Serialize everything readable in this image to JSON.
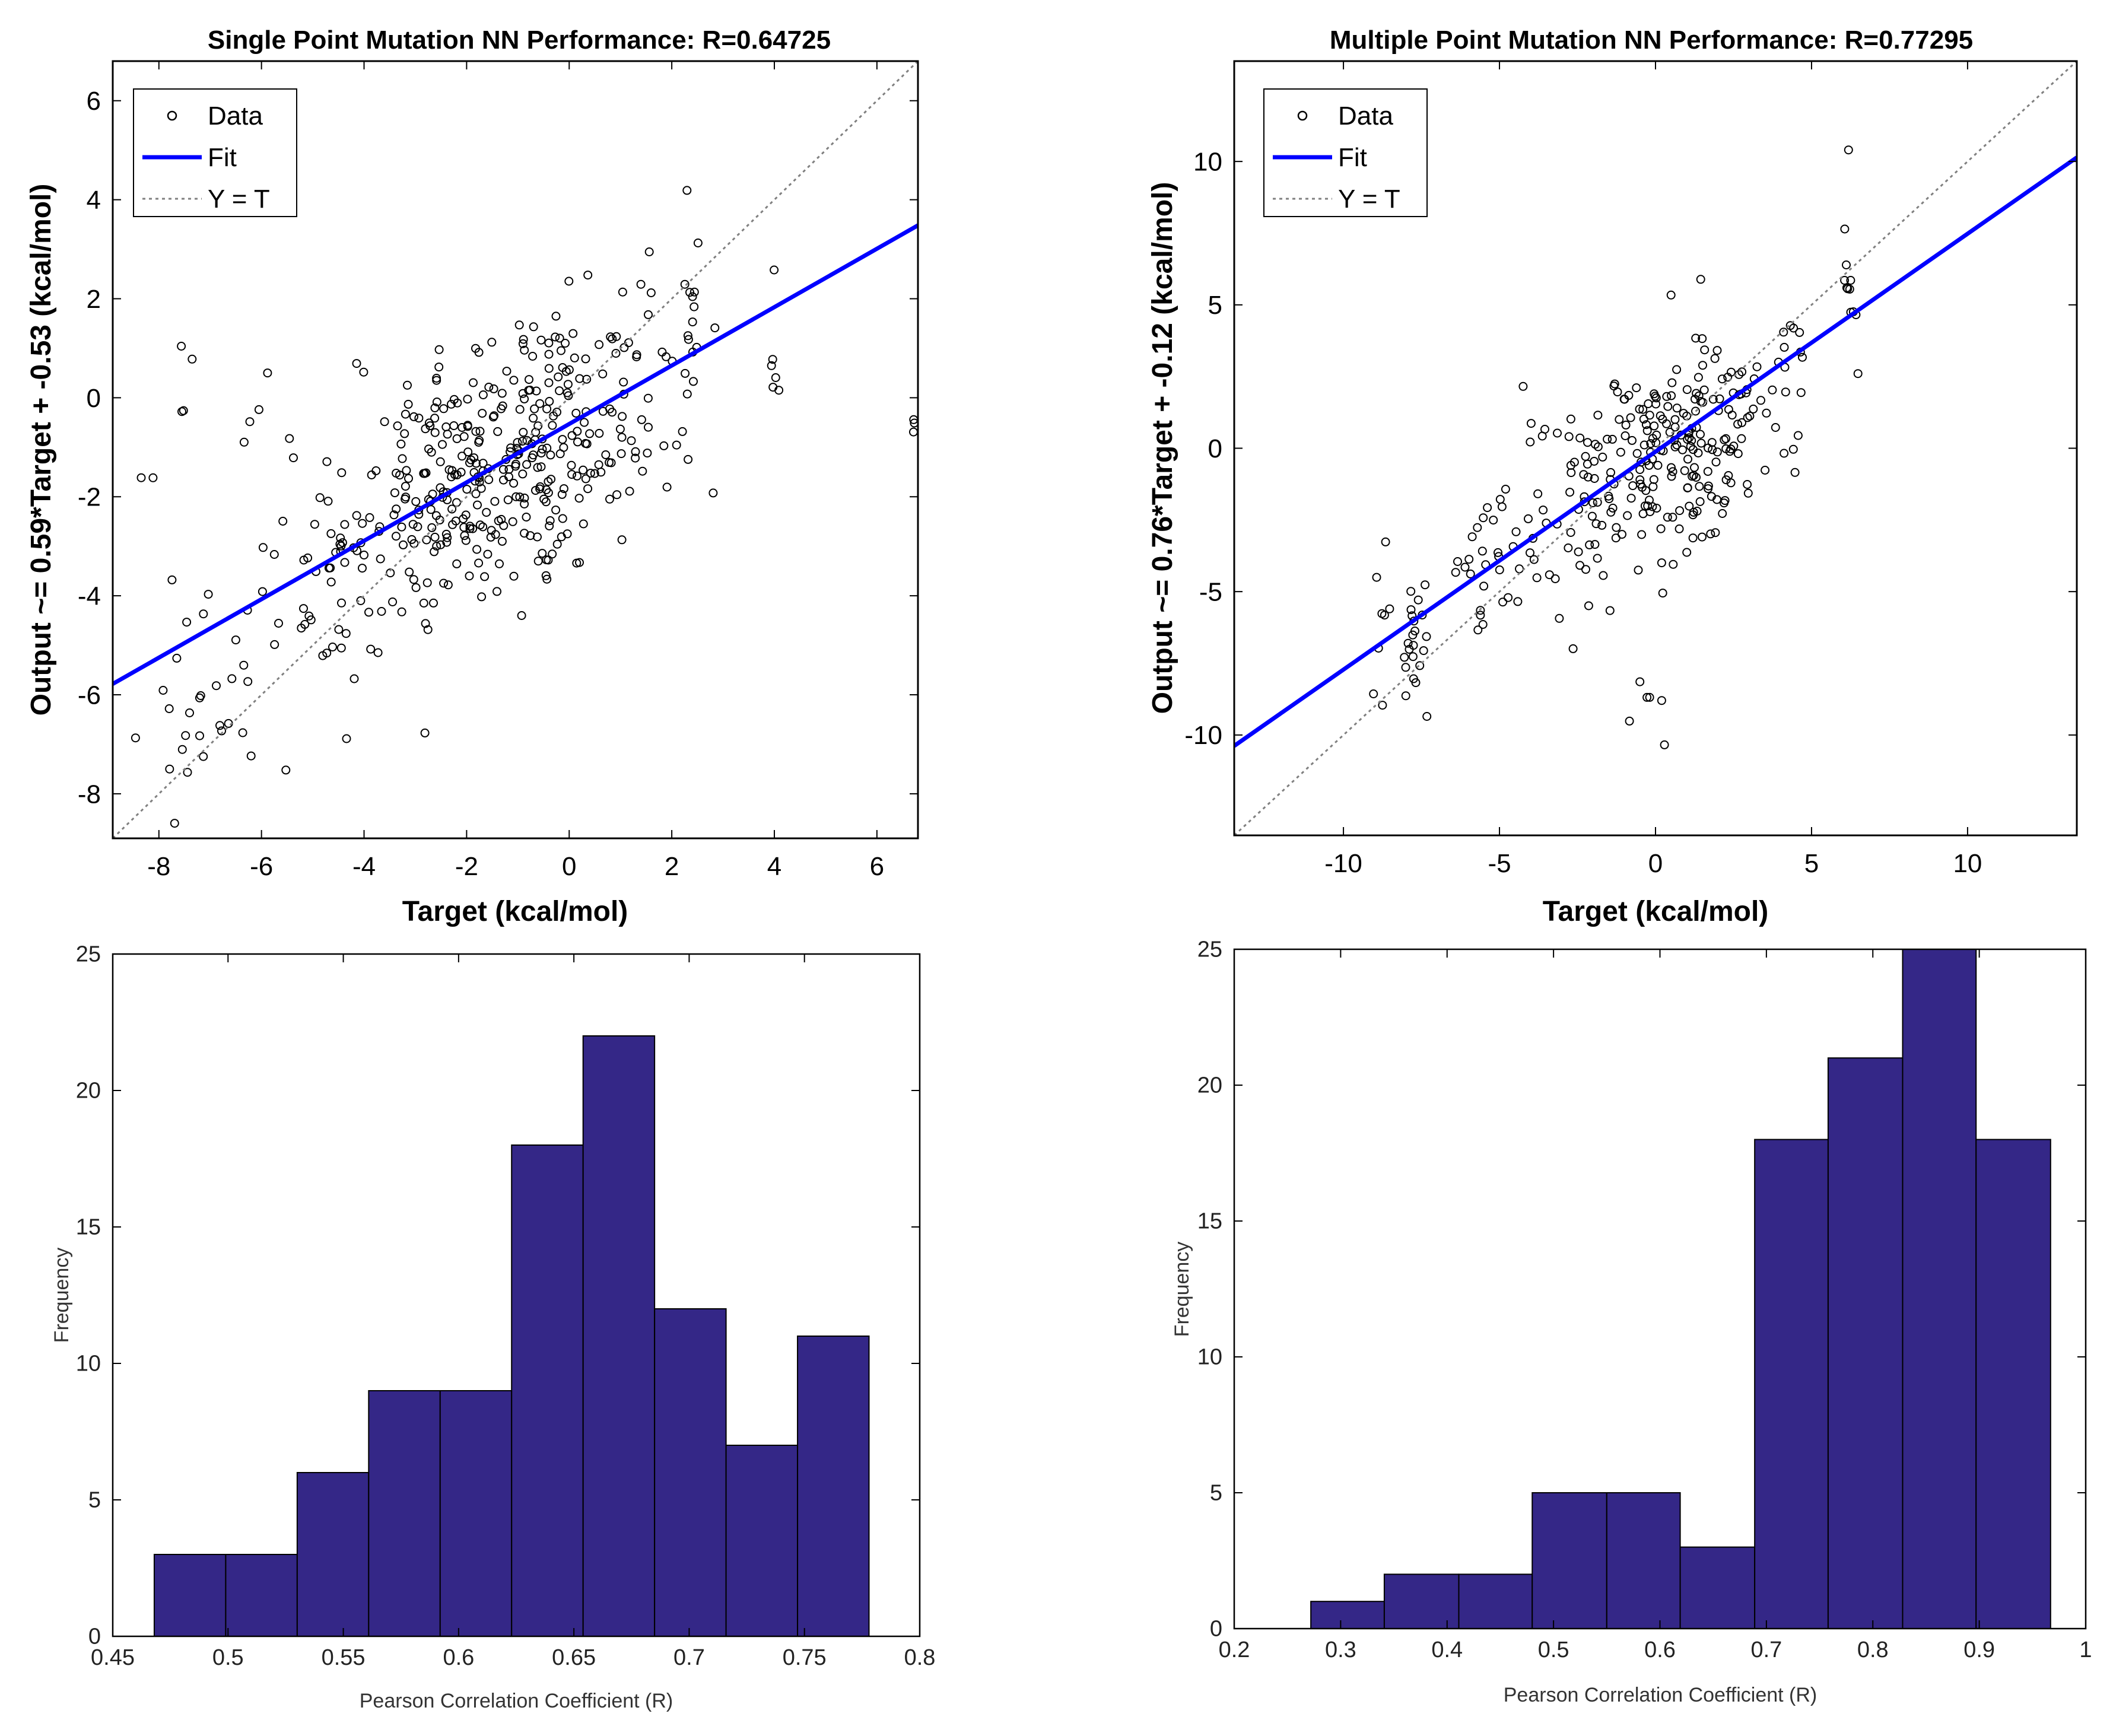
{
  "chart_data": [
    {
      "id": "p1",
      "type": "scatter",
      "title": "Single Point Mutation NN Performance: R=0.64725",
      "xlabel": "Target (kcal/mol)",
      "ylabel": "Output ~= 0.59*Target + -0.53 (kcal/mol)",
      "xlim": [
        -8.9,
        6.8
      ],
      "ylim": [
        -8.9,
        6.8
      ],
      "xticks": [
        -8,
        -6,
        -4,
        -2,
        0,
        2,
        4,
        6
      ],
      "yticks": [
        -8,
        -6,
        -4,
        -2,
        0,
        2,
        4,
        6
      ],
      "fit": {
        "slope": 0.59,
        "intercept": -0.53
      },
      "identity_line": true,
      "legend": {
        "placement": "top-left",
        "entries": [
          "Data",
          "Fit",
          "Y = T"
        ]
      },
      "point_clusters": [
        {
          "x": -0.8,
          "y": -0.9,
          "sx": 1.3,
          "sy": 1.4,
          "n": 240
        },
        {
          "x": -3.2,
          "y": -2.6,
          "sx": 0.7,
          "sy": 1.1,
          "n": 70
        },
        {
          "x": -1.8,
          "y": -2.0,
          "sx": 0.9,
          "sy": 1.3,
          "n": 60
        },
        {
          "x": -4.8,
          "y": -4.3,
          "sx": 0.5,
          "sy": 0.9,
          "n": 30
        },
        {
          "x": -7.2,
          "y": -6.5,
          "sx": 0.6,
          "sy": 0.9,
          "n": 22
        },
        {
          "x": -6.0,
          "y": -3.5,
          "sx": 0.5,
          "sy": 2.2,
          "n": 16
        },
        {
          "x": -8.0,
          "y": -1.8,
          "sx": 0.3,
          "sy": 1.3,
          "n": 8
        },
        {
          "x": 1.8,
          "y": 0.2,
          "sx": 0.6,
          "sy": 1.3,
          "n": 22
        },
        {
          "x": 2.4,
          "y": 1.6,
          "sx": 0.15,
          "sy": 1.4,
          "n": 14
        },
        {
          "x": 4.0,
          "y": 0.4,
          "sx": 0.05,
          "sy": 1.1,
          "n": 6
        },
        {
          "x": 6.7,
          "y": -1.2,
          "sx": 0.05,
          "sy": 0.5,
          "n": 3
        }
      ]
    },
    {
      "id": "p2",
      "type": "scatter",
      "title": "Multiple Point Mutation NN Performance: R=0.77295",
      "xlabel": "Target (kcal/mol)",
      "ylabel": "Output ~= 0.76*Target + -0.12 (kcal/mol)",
      "xlim": [
        -13.5,
        13.5
      ],
      "ylim": [
        -13.5,
        13.5
      ],
      "xticks": [
        -10,
        -5,
        0,
        5,
        10
      ],
      "yticks": [
        -10,
        -5,
        0,
        5,
        10
      ],
      "fit": {
        "slope": 0.76,
        "intercept": -0.12
      },
      "identity_line": true,
      "legend": {
        "placement": "top-left",
        "entries": [
          "Data",
          "Fit",
          "Y = T"
        ]
      },
      "point_clusters": [
        {
          "x": 0.3,
          "y": -0.3,
          "sx": 1.2,
          "sy": 1.6,
          "n": 150
        },
        {
          "x": -2.5,
          "y": -2.2,
          "sx": 1.3,
          "sy": 1.8,
          "n": 60
        },
        {
          "x": 2.2,
          "y": 1.2,
          "sx": 1.0,
          "sy": 1.5,
          "n": 50
        },
        {
          "x": -5.2,
          "y": -4.5,
          "sx": 0.7,
          "sy": 1.6,
          "n": 30
        },
        {
          "x": -7.8,
          "y": -6.8,
          "sx": 0.3,
          "sy": 1.2,
          "n": 22
        },
        {
          "x": -8.8,
          "y": -6.5,
          "sx": 0.2,
          "sy": 1.4,
          "n": 8
        },
        {
          "x": 4.2,
          "y": 3.5,
          "sx": 0.4,
          "sy": 1.8,
          "n": 12
        },
        {
          "x": 6.2,
          "y": 4.8,
          "sx": 0.1,
          "sy": 1.8,
          "n": 12
        },
        {
          "x": -0.5,
          "y": -8.8,
          "sx": 0.7,
          "sy": 0.7,
          "n": 6
        }
      ]
    },
    {
      "id": "h1",
      "type": "bar",
      "subtype": "histogram",
      "title": "",
      "xlabel": "Pearson Correlation Coefficient (R)",
      "ylabel": "Frequency",
      "xlim": [
        0.45,
        0.8
      ],
      "ylim": [
        0,
        25
      ],
      "xticks": [
        0.45,
        0.5,
        0.55,
        0.6,
        0.65,
        0.7,
        0.75,
        0.8
      ],
      "yticks": [
        0,
        5,
        10,
        15,
        20,
        25
      ],
      "bin_edges": [
        0.468,
        0.499,
        0.53,
        0.561,
        0.592,
        0.623,
        0.654,
        0.685,
        0.716,
        0.747,
        0.778
      ],
      "values": [
        3,
        3,
        6,
        9,
        9,
        18,
        22,
        12,
        7,
        11
      ],
      "bar_color": "#342787"
    },
    {
      "id": "h2",
      "type": "bar",
      "subtype": "histogram",
      "title": "",
      "xlabel": "Pearson Correlation Coefficient (R)",
      "ylabel": "Frequency",
      "xlim": [
        0.2,
        1.0
      ],
      "ylim": [
        0,
        25
      ],
      "xticks": [
        0.2,
        0.3,
        0.4,
        0.5,
        0.6,
        0.7,
        0.8,
        0.9,
        1
      ],
      "yticks": [
        0,
        5,
        10,
        15,
        20,
        25
      ],
      "bin_edges": [
        0.272,
        0.341,
        0.411,
        0.48,
        0.55,
        0.619,
        0.689,
        0.758,
        0.828,
        0.897,
        0.967
      ],
      "values": [
        1,
        2,
        2,
        5,
        5,
        3,
        18,
        21,
        25,
        18
      ],
      "bar_color": "#342787"
    }
  ],
  "colors": {
    "fit_line": "#0000ff",
    "identity_line": "#808080",
    "points": "#000000",
    "bars": "#342787",
    "bar_edge": "#000000"
  }
}
